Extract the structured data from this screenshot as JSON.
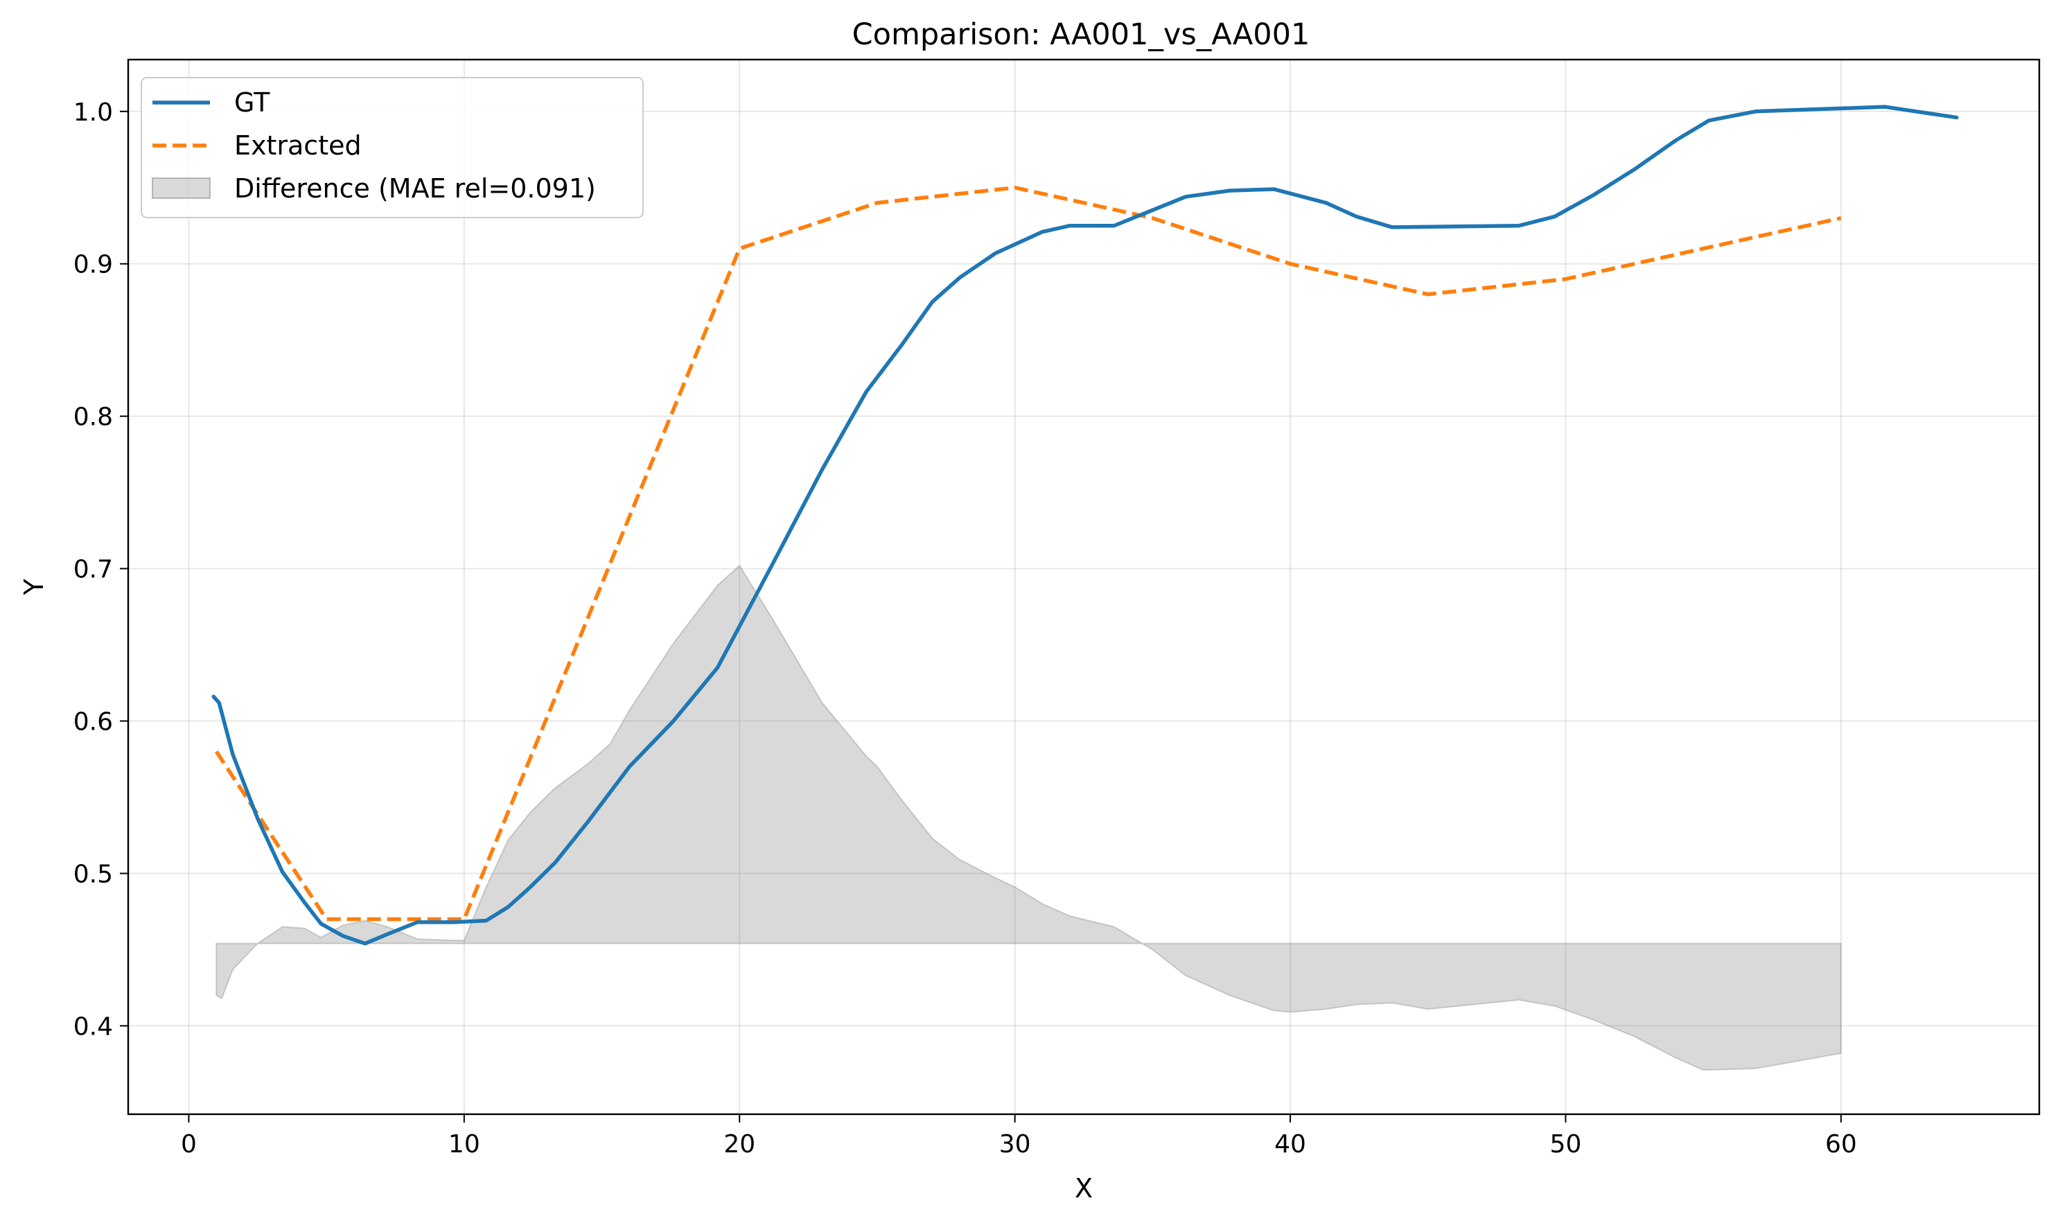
{
  "chart_data": {
    "type": "line",
    "title": "Comparison: AA001_vs_AA001",
    "xlabel": "X",
    "ylabel": "Y",
    "xlim": [
      -2.2,
      67.2
    ],
    "ylim": [
      0.342,
      1.034
    ],
    "xticks": [
      0,
      10,
      20,
      30,
      40,
      50,
      60
    ],
    "yticks": [
      0.4,
      0.5,
      0.6,
      0.7,
      0.8,
      0.9,
      1.0
    ],
    "xtick_labels": [
      "0",
      "10",
      "20",
      "30",
      "40",
      "50",
      "60"
    ],
    "ytick_labels": [
      "0.4",
      "0.5",
      "0.6",
      "0.7",
      "0.8",
      "0.9",
      "1.0"
    ],
    "grid": true,
    "legend_position": "top-left",
    "series": [
      {
        "name": "GT",
        "color": "#1f77b4",
        "style": "solid",
        "x": [
          0.9,
          1.1,
          1.6,
          2.5,
          3.4,
          4.2,
          4.8,
          5.6,
          6.4,
          7.2,
          8.3,
          9.6,
          10.8,
          11.6,
          12.4,
          13.3,
          14.5,
          16.0,
          17.6,
          19.2,
          21.2,
          23.0,
          24.6,
          25.9,
          27.0,
          28.0,
          29.3,
          31.0,
          32.0,
          33.6,
          36.2,
          37.8,
          39.4,
          41.3,
          42.4,
          43.7,
          48.3,
          49.6,
          51.0,
          52.5,
          54.0,
          55.2,
          56.9,
          61.6,
          64.2
        ],
        "y": [
          0.616,
          0.612,
          0.578,
          0.536,
          0.501,
          0.481,
          0.467,
          0.459,
          0.454,
          0.46,
          0.468,
          0.468,
          0.469,
          0.478,
          0.491,
          0.507,
          0.534,
          0.57,
          0.6,
          0.635,
          0.703,
          0.765,
          0.816,
          0.847,
          0.875,
          0.891,
          0.907,
          0.921,
          0.925,
          0.925,
          0.944,
          0.948,
          0.949,
          0.94,
          0.931,
          0.924,
          0.925,
          0.931,
          0.945,
          0.962,
          0.981,
          0.994,
          1.0,
          1.003,
          0.996
        ]
      },
      {
        "name": "Extracted",
        "color": "#ff7f0e",
        "style": "dashed",
        "x": [
          1.0,
          5.0,
          10.0,
          20.0,
          25.0,
          30.0,
          35.0,
          40.0,
          45.0,
          50.0,
          55.0,
          60.0
        ],
        "y": [
          0.58,
          0.47,
          0.47,
          0.91,
          0.94,
          0.95,
          0.93,
          0.9,
          0.88,
          0.89,
          0.91,
          0.93
        ]
      }
    ],
    "difference": {
      "name": "Difference (MAE rel=0.091)",
      "color": "#808080",
      "baseline": 0.454,
      "x": [
        1.0,
        1.2,
        1.6,
        2.5,
        3.4,
        4.2,
        4.8,
        5.6,
        6.4,
        7.2,
        8.3,
        9.6,
        10.0,
        10.8,
        11.6,
        12.4,
        13.3,
        14.5,
        15.3,
        16.0,
        17.6,
        19.2,
        20.0,
        21.2,
        23.0,
        24.6,
        25.0,
        25.9,
        27.0,
        28.0,
        29.3,
        30.0,
        31.0,
        32.0,
        33.6,
        35.0,
        36.2,
        37.8,
        39.4,
        40.0,
        41.3,
        42.4,
        43.7,
        45.0,
        48.3,
        49.6,
        51.0,
        52.5,
        54.0,
        55.0,
        56.9,
        60.0
      ],
      "y": [
        0.42,
        0.418,
        0.437,
        0.454,
        0.465,
        0.464,
        0.458,
        0.466,
        0.469,
        0.465,
        0.457,
        0.456,
        0.456,
        0.491,
        0.522,
        0.54,
        0.556,
        0.572,
        0.585,
        0.607,
        0.651,
        0.689,
        0.702,
        0.667,
        0.612,
        0.577,
        0.57,
        0.548,
        0.523,
        0.509,
        0.497,
        0.491,
        0.48,
        0.472,
        0.465,
        0.45,
        0.433,
        0.42,
        0.41,
        0.409,
        0.411,
        0.414,
        0.415,
        0.411,
        0.417,
        0.413,
        0.404,
        0.393,
        0.379,
        0.371,
        0.372,
        0.382
      ]
    }
  }
}
